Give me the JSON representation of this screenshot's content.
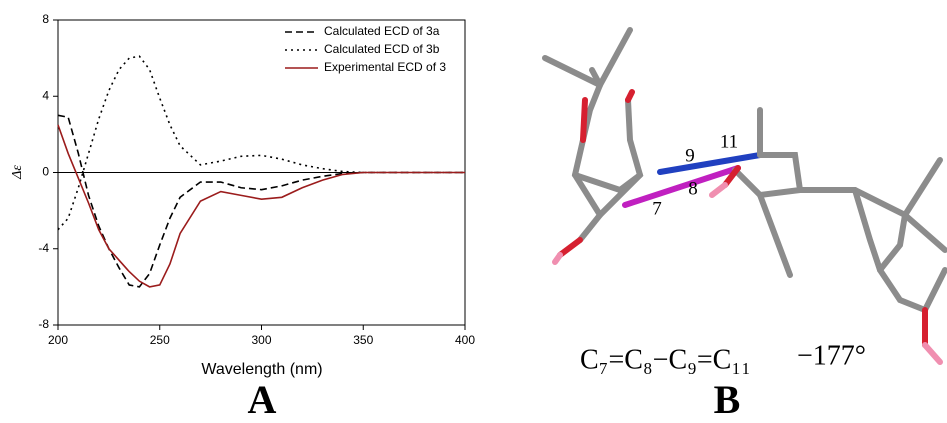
{
  "chart_data": {
    "type": "line",
    "x_label": "Wavelength (nm)",
    "y_label": "Δε",
    "panel_label": "A",
    "x": [
      200,
      205,
      210,
      215,
      220,
      225,
      230,
      235,
      240,
      245,
      250,
      255,
      260,
      270,
      280,
      290,
      300,
      310,
      320,
      330,
      340,
      350,
      375,
      400
    ],
    "series": [
      {
        "name": "Calculated ECD of 3a",
        "color": "#000000",
        "dash": "dashed",
        "values": [
          3.0,
          2.9,
          1.0,
          -1.2,
          -2.8,
          -4.0,
          -5.0,
          -5.9,
          -6.0,
          -5.3,
          -3.8,
          -2.4,
          -1.3,
          -0.5,
          -0.5,
          -0.8,
          -0.9,
          -0.7,
          -0.4,
          -0.2,
          -0.05,
          0,
          0,
          0
        ]
      },
      {
        "name": "Calculated ECD of 3b",
        "color": "#000000",
        "dash": "dotted",
        "values": [
          -3.0,
          -2.4,
          -0.8,
          1.0,
          2.8,
          4.3,
          5.4,
          6.0,
          6.1,
          5.4,
          3.9,
          2.5,
          1.4,
          0.4,
          0.6,
          0.85,
          0.9,
          0.7,
          0.4,
          0.2,
          0.05,
          0,
          0,
          0
        ]
      },
      {
        "name": "Experimental ECD of 3",
        "color": "#9b1c1c",
        "dash": "solid",
        "values": [
          2.5,
          1.0,
          -0.3,
          -1.6,
          -3.0,
          -4.0,
          -4.6,
          -5.2,
          -5.7,
          -6.0,
          -5.9,
          -4.8,
          -3.2,
          -1.5,
          -1.0,
          -1.2,
          -1.4,
          -1.3,
          -0.8,
          -0.4,
          -0.1,
          0,
          0,
          0
        ]
      }
    ],
    "xlim": [
      200,
      400
    ],
    "xticks": [
      200,
      250,
      300,
      350,
      400
    ],
    "ylim": [
      -8,
      8
    ],
    "yticks": [
      -8,
      -4,
      0,
      4,
      8
    ],
    "zero_line": true,
    "legend": "top-right"
  },
  "figure_b": {
    "panel_label": "B",
    "atom_labels": [
      "9",
      "11",
      "8",
      "7"
    ],
    "dihedral": "C₇=C₈−C₉=C₁₁",
    "angle": "−177°"
  }
}
